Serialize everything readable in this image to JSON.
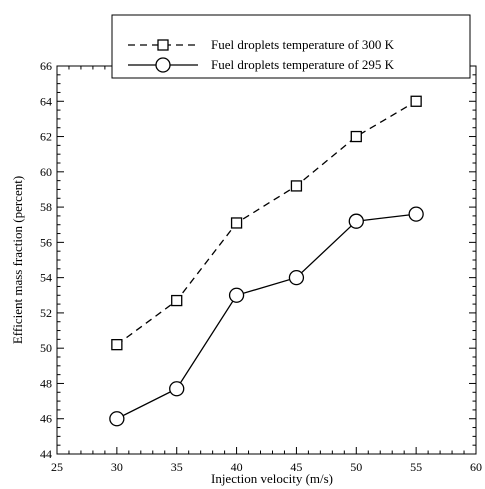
{
  "chart_data": {
    "type": "line",
    "title": "",
    "xlabel": "Injection velocity (m/s)",
    "ylabel": "Efficient mass fraction (percent)",
    "xlim": [
      25,
      60
    ],
    "ylim": [
      44,
      66
    ],
    "x_ticks": [
      25,
      30,
      35,
      40,
      45,
      50,
      55,
      60
    ],
    "x_tick_labels": [
      "25",
      "30",
      "35",
      "40",
      "45",
      "50",
      "55",
      "60"
    ],
    "y_ticks": [
      44,
      46,
      48,
      50,
      52,
      54,
      56,
      58,
      60,
      62,
      64,
      66
    ],
    "y_tick_labels": [
      "44",
      "46",
      "48",
      "50",
      "52",
      "54",
      "56",
      "58",
      "60",
      "62",
      "64",
      "66"
    ],
    "grid": false,
    "legend_position": "top-right",
    "x": [
      30,
      35,
      40,
      45,
      50,
      55
    ],
    "series": [
      {
        "name": "Fuel droplets temperature of 300 K",
        "values": [
          50.2,
          52.7,
          57.1,
          59.2,
          62.0,
          64.0
        ],
        "line_style": "dashed",
        "marker": "square",
        "color": "#000000"
      },
      {
        "name": "Fuel droplets temperature of 295 K",
        "values": [
          46.0,
          47.7,
          53.0,
          54.0,
          57.2,
          57.6
        ],
        "line_style": "solid",
        "marker": "circle",
        "color": "#000000"
      }
    ]
  }
}
